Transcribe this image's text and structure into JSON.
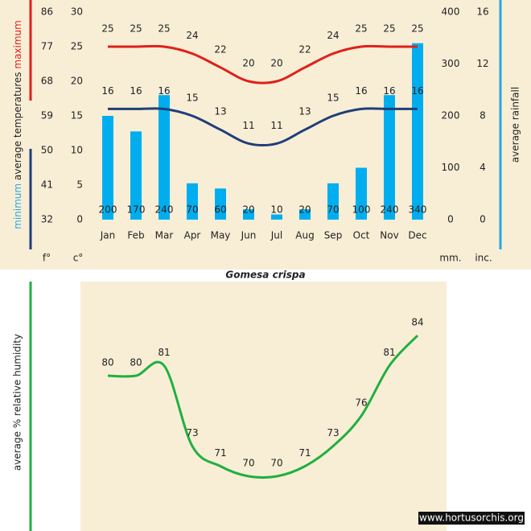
{
  "chart_data": [
    {
      "type": "bar",
      "title": "Gomesa crispa",
      "categories": [
        "Jan",
        "Feb",
        "Mar",
        "Apr",
        "May",
        "Jun",
        "Jul",
        "Aug",
        "Sep",
        "Oct",
        "Nov",
        "Dec"
      ],
      "series": [
        {
          "name": "maximum",
          "type": "line",
          "color": "#e0201b",
          "values": [
            25,
            25,
            25,
            24,
            22,
            20,
            20,
            22,
            24,
            25,
            25,
            25
          ]
        },
        {
          "name": "minimum",
          "type": "line",
          "color": "#1f3f7a",
          "label_color": "#29a8e0",
          "values": [
            16,
            16,
            16,
            15,
            13,
            11,
            11,
            13,
            15,
            16,
            16,
            16
          ]
        },
        {
          "name": "average rainfall",
          "type": "bar",
          "axis": "y2",
          "color": "#00aeef",
          "values": [
            200,
            170,
            240,
            70,
            60,
            20,
            10,
            20,
            70,
            100,
            240,
            340
          ]
        }
      ],
      "ylabel": "average temperatures",
      "ylim": [
        0,
        30
      ],
      "yticks": [
        0,
        5,
        10,
        15,
        20,
        25,
        30
      ],
      "yunit": "c°",
      "y3lim": [
        32,
        86
      ],
      "y3ticks": [
        32,
        41,
        50,
        59,
        68,
        77,
        86
      ],
      "y3unit": "f°",
      "y2lim": [
        0,
        400
      ],
      "y2ticks": [
        0,
        100,
        200,
        300,
        400
      ],
      "y2unit": "mm.",
      "y4lim": [
        0,
        16
      ],
      "y4ticks": [
        0,
        4,
        8,
        12,
        16
      ],
      "y4unit": "inc."
    },
    {
      "type": "line",
      "ylabel": "average % relative humidity",
      "categories": [
        null,
        null,
        null,
        null,
        null,
        null,
        null,
        null,
        null,
        null,
        null,
        null
      ],
      "series": [
        {
          "color": "#1fb040",
          "values": [
            80,
            80,
            81,
            73,
            71,
            70,
            70,
            71,
            73,
            76,
            81,
            84
          ]
        }
      ]
    }
  ],
  "watermark": "www.hortusorchis.org"
}
